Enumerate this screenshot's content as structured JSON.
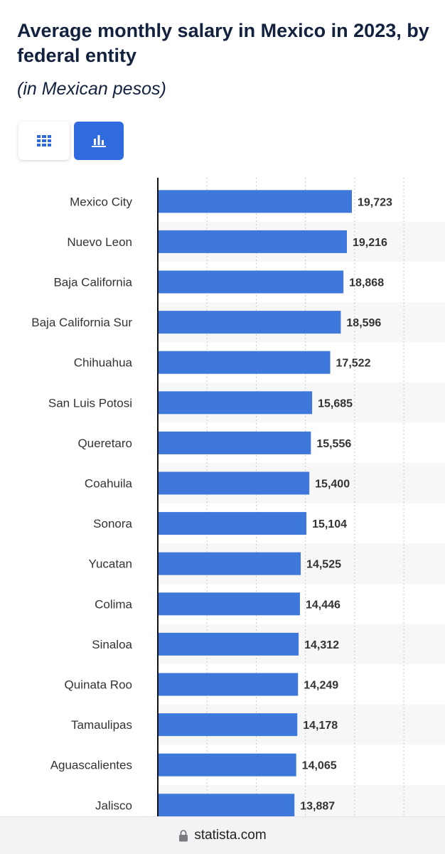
{
  "header": {
    "title": "Average monthly salary in Mexico in 2023, by federal entity",
    "subtitle": "(in Mexican pesos)"
  },
  "view_toggle": {
    "table_icon": "table-grid-icon",
    "chart_icon": "bar-chart-icon",
    "selected": "chart"
  },
  "footer": {
    "lock_icon": "lock-icon",
    "domain": "statista.com"
  },
  "colors": {
    "bar": "#3e78db",
    "accent": "#2f6adf",
    "title": "#12213d"
  },
  "chart_data": {
    "type": "bar",
    "orientation": "horizontal",
    "title": "Average monthly salary in Mexico in 2023, by federal entity",
    "subtitle": "(in Mexican pesos)",
    "categories": [
      "Mexico City",
      "Nuevo Leon",
      "Baja California",
      "Baja California Sur",
      "Chihuahua",
      "San Luis Potosi",
      "Queretaro",
      "Coahuila",
      "Sonora",
      "Yucatan",
      "Colima",
      "Sinaloa",
      "Quinata Roo",
      "Tamaulipas",
      "Aguascalientes",
      "Jalisco"
    ],
    "values": [
      19723,
      19216,
      18868,
      18596,
      17522,
      15685,
      15556,
      15400,
      15104,
      14525,
      14446,
      14312,
      14249,
      14178,
      14065,
      13887
    ],
    "value_labels": [
      "19,723",
      "19,216",
      "18,868",
      "18,596",
      "17,522",
      "15,685",
      "15,556",
      "15,400",
      "15,104",
      "14,525",
      "14,446",
      "14,312",
      "14,249",
      "14,178",
      "14,065",
      "13,887"
    ],
    "xlim": [
      0,
      25000
    ],
    "grid": true,
    "legend": "none"
  }
}
